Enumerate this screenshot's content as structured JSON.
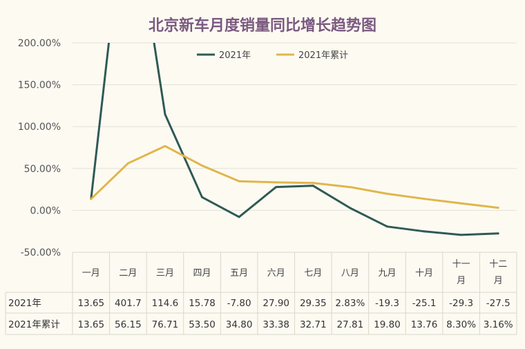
{
  "chart_data": {
    "type": "line",
    "title": "北京新车月度销量同比增长趋势图",
    "categories": [
      "一月",
      "二月",
      "三月",
      "四月",
      "五月",
      "六月",
      "七月",
      "八月",
      "九月",
      "十月",
      "十一月",
      "十二月"
    ],
    "ylim": [
      -50,
      200
    ],
    "yticks": [
      -50,
      0,
      50,
      100,
      150,
      200
    ],
    "ytick_labels": [
      "-50.00%",
      "0.00%",
      "50.00%",
      "100.00%",
      "150.00%",
      "200.00%"
    ],
    "grid": true,
    "legend_position": "top-center",
    "series": [
      {
        "name": "2021年",
        "color": "#2f5a55",
        "values": [
          13.65,
          401.7,
          114.6,
          15.78,
          -7.8,
          27.9,
          29.35,
          2.83,
          -19.3,
          -25.1,
          -29.3,
          -27.5
        ],
        "labels": [
          "13.65",
          "401.7",
          "114.6",
          "15.78",
          "-7.80",
          "27.90",
          "29.35",
          "2.83%",
          "-19.3",
          "-25.1",
          "-29.3",
          "-27.5"
        ]
      },
      {
        "name": "2021年累计",
        "color": "#e0b64a",
        "values": [
          13.65,
          56.15,
          76.71,
          53.5,
          34.8,
          33.38,
          32.71,
          27.81,
          19.8,
          13.76,
          8.3,
          3.16
        ],
        "labels": [
          "13.65",
          "56.15",
          "76.71",
          "53.50",
          "34.80",
          "33.38",
          "32.71",
          "27.81",
          "19.80",
          "13.76",
          "8.30%",
          "3.16%"
        ]
      }
    ]
  }
}
